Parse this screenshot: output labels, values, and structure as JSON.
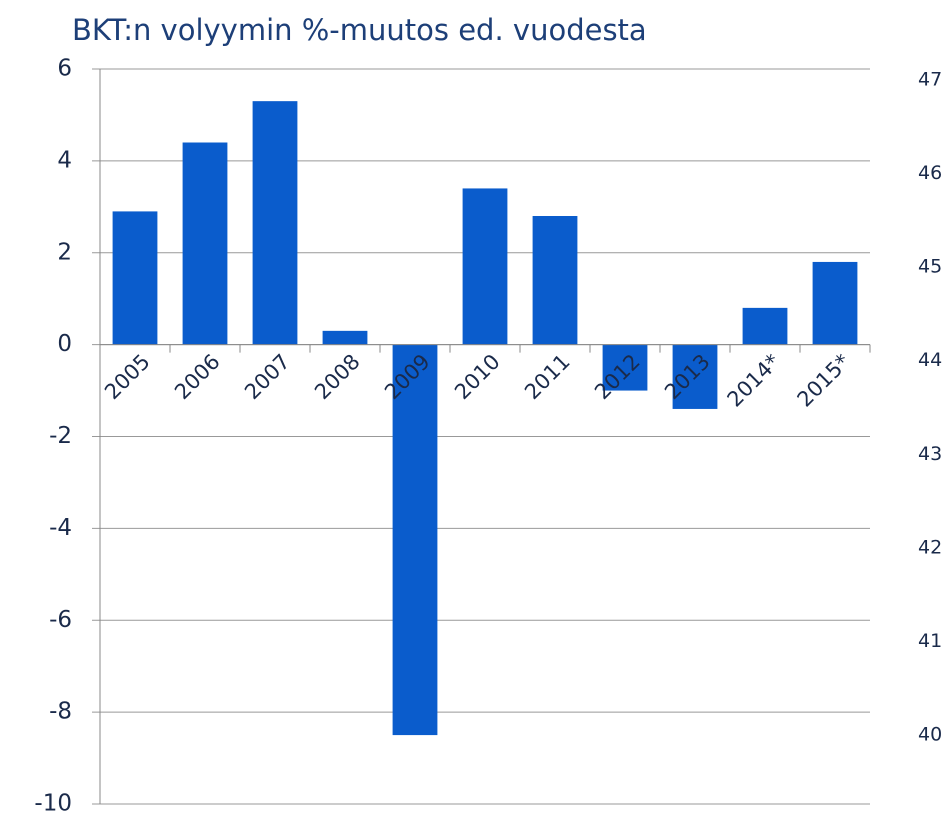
{
  "chart_data": {
    "type": "bar",
    "title": "BKT:n volyymin %-muutos ed. vuodesta",
    "categories": [
      "2005",
      "2006",
      "2007",
      "2008",
      "2009",
      "2010",
      "2011",
      "2012",
      "2013",
      "2014*",
      "2015*"
    ],
    "values": [
      2.9,
      4.4,
      5.3,
      0.3,
      -8.5,
      3.4,
      2.8,
      -1.0,
      -1.4,
      0.8,
      1.8
    ],
    "color": "#0a5ccc",
    "ylim": [
      -10,
      6
    ],
    "yticks": [
      -10,
      -8,
      -6,
      -4,
      -2,
      0,
      2,
      4,
      6
    ],
    "y2lim": [
      40,
      47
    ],
    "y2ticks": [
      40,
      41,
      42,
      43,
      44,
      45,
      46,
      47
    ],
    "grid": true
  }
}
